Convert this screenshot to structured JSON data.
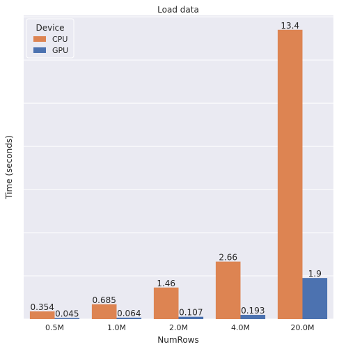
{
  "chart_data": {
    "type": "bar",
    "title": "Load data",
    "xlabel": "NumRows",
    "ylabel": "Time (seconds)",
    "categories": [
      "0.5M",
      "1.0M",
      "2.0M",
      "4.0M",
      "20.0M"
    ],
    "series": [
      {
        "name": "CPU",
        "values": [
          0.354,
          0.685,
          1.46,
          2.66,
          13.4
        ],
        "labels": [
          "0.354",
          "0.685",
          "1.46",
          "2.66",
          "13.4"
        ],
        "color": "#dd8452"
      },
      {
        "name": "GPU",
        "values": [
          0.045,
          0.064,
          0.107,
          0.193,
          1.9
        ],
        "labels": [
          "0.045",
          "0.064",
          "0.107",
          "0.193",
          "1.9"
        ],
        "color": "#4c72b0"
      }
    ],
    "legend": {
      "title": "Device",
      "position": "top-left"
    },
    "ylim": [
      0,
      14.07
    ],
    "grid": true,
    "background": "#eaeaf2",
    "ytick_values": [
      0,
      2,
      4,
      6,
      8,
      10,
      12,
      14
    ],
    "ytick_labels_visible": false
  }
}
